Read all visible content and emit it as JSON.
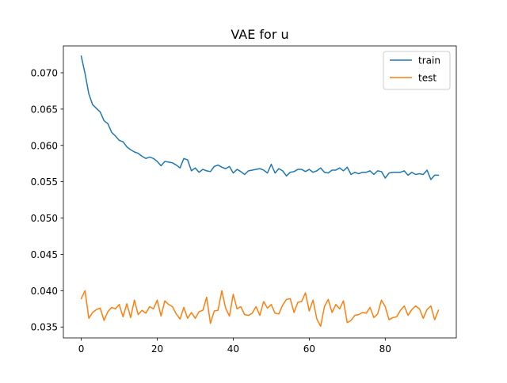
{
  "chart_data": {
    "type": "line",
    "title": "VAE for u",
    "xlabel": "",
    "ylabel": "",
    "xlim": [
      -4.7,
      98.7
    ],
    "ylim": [
      0.0335,
      0.0737
    ],
    "x_ticks": [
      0,
      20,
      40,
      60,
      80
    ],
    "x_tick_labels": [
      "0",
      "20",
      "40",
      "60",
      "80"
    ],
    "y_ticks": [
      0.035,
      0.04,
      0.045,
      0.05,
      0.055,
      0.06,
      0.065,
      0.07
    ],
    "y_tick_labels": [
      "0.035",
      "0.040",
      "0.045",
      "0.050",
      "0.055",
      "0.060",
      "0.065",
      "0.070"
    ],
    "grid": false,
    "legend_position": "top-right",
    "series": [
      {
        "name": "train",
        "color": "#1f77b4",
        "values": [
          0.0723,
          0.0699,
          0.0671,
          0.0656,
          0.0651,
          0.0646,
          0.0634,
          0.063,
          0.0618,
          0.0613,
          0.0607,
          0.0605,
          0.0598,
          0.0594,
          0.0591,
          0.0589,
          0.0585,
          0.0582,
          0.0584,
          0.0582,
          0.0578,
          0.0572,
          0.0578,
          0.0577,
          0.0576,
          0.0573,
          0.0569,
          0.0582,
          0.058,
          0.0565,
          0.0569,
          0.0563,
          0.0567,
          0.0565,
          0.0564,
          0.0571,
          0.0573,
          0.057,
          0.0568,
          0.0571,
          0.0562,
          0.0567,
          0.0564,
          0.056,
          0.0565,
          0.0566,
          0.0567,
          0.0568,
          0.0566,
          0.0562,
          0.0574,
          0.0562,
          0.0568,
          0.0565,
          0.0558,
          0.0563,
          0.0564,
          0.0567,
          0.0567,
          0.0564,
          0.0567,
          0.0563,
          0.0565,
          0.0569,
          0.0563,
          0.0562,
          0.0566,
          0.0566,
          0.0569,
          0.0565,
          0.057,
          0.056,
          0.0563,
          0.0561,
          0.0563,
          0.0563,
          0.0565,
          0.056,
          0.0565,
          0.0564,
          0.0555,
          0.0562,
          0.0563,
          0.0563,
          0.0563,
          0.0565,
          0.0559,
          0.0563,
          0.056,
          0.0561,
          0.056,
          0.0566,
          0.0553,
          0.0559,
          0.0559
        ]
      },
      {
        "name": "test",
        "color": "#ff7f0e",
        "values": [
          0.0389,
          0.04,
          0.0362,
          0.037,
          0.0374,
          0.0376,
          0.0359,
          0.0371,
          0.0377,
          0.0375,
          0.0381,
          0.0364,
          0.0382,
          0.0363,
          0.0387,
          0.0367,
          0.0373,
          0.0369,
          0.0378,
          0.0375,
          0.0387,
          0.0365,
          0.0386,
          0.0381,
          0.0378,
          0.0368,
          0.0361,
          0.0377,
          0.0362,
          0.037,
          0.0362,
          0.0371,
          0.0373,
          0.0391,
          0.0355,
          0.0372,
          0.0373,
          0.04,
          0.0376,
          0.0365,
          0.0395,
          0.0375,
          0.0378,
          0.0367,
          0.0366,
          0.0369,
          0.0378,
          0.0366,
          0.0385,
          0.0376,
          0.0381,
          0.0369,
          0.0368,
          0.038,
          0.0388,
          0.0389,
          0.037,
          0.0384,
          0.0385,
          0.0397,
          0.0372,
          0.0387,
          0.0361,
          0.0351,
          0.0378,
          0.0388,
          0.037,
          0.0381,
          0.0375,
          0.0386,
          0.0356,
          0.0359,
          0.0366,
          0.0367,
          0.037,
          0.0369,
          0.0377,
          0.0363,
          0.0368,
          0.0387,
          0.0378,
          0.036,
          0.0363,
          0.0364,
          0.0373,
          0.0379,
          0.0366,
          0.0374,
          0.0379,
          0.0375,
          0.0362,
          0.0374,
          0.0379,
          0.036,
          0.0373
        ]
      }
    ]
  }
}
